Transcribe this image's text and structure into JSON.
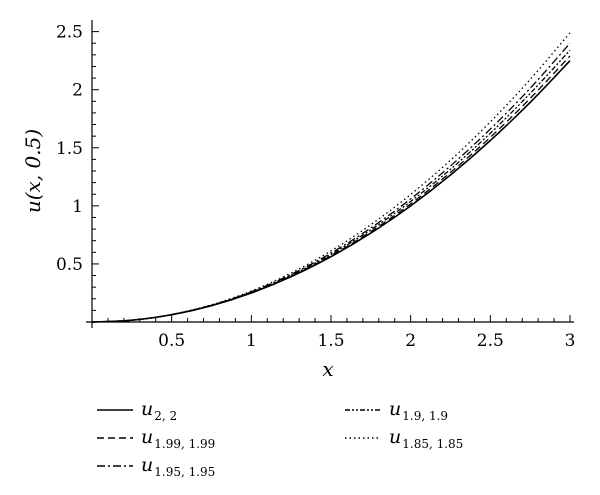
{
  "chart_data": {
    "type": "line",
    "xlabel": "x",
    "ylabel": "u(x, 0.5)",
    "xlim": [
      0,
      3
    ],
    "ylim": [
      0,
      2.6
    ],
    "x_ticks": [
      0.5,
      1,
      1.5,
      2,
      2.5,
      3
    ],
    "x_tick_labels": [
      "0.5",
      "1",
      "1.5",
      "2",
      "2.5",
      "3"
    ],
    "y_ticks": [
      0.5,
      1,
      1.5,
      2,
      2.5
    ],
    "y_tick_labels": [
      "0.5",
      "1",
      "1.5",
      "2",
      "2.5"
    ],
    "grid": false,
    "legend_position": "below",
    "x": [
      0,
      0.25,
      0.5,
      0.75,
      1.0,
      1.25,
      1.5,
      1.75,
      2.0,
      2.25,
      2.5,
      2.75,
      3.0
    ],
    "series": [
      {
        "label_main": "u",
        "label_sub": "2, 2",
        "dash": "solid",
        "values": [
          0,
          0.0156,
          0.0625,
          0.1406,
          0.25,
          0.3906,
          0.5625,
          0.7656,
          1.0,
          1.2656,
          1.5625,
          1.8906,
          2.25
        ]
      },
      {
        "label_main": "u",
        "label_sub": "1.99, 1.99",
        "dash": "dashed",
        "values": [
          0,
          0.0156,
          0.063,
          0.142,
          0.253,
          0.396,
          0.571,
          0.778,
          1.017,
          1.288,
          1.59,
          1.925,
          2.29
        ]
      },
      {
        "label_main": "u",
        "label_sub": "1.95, 1.95",
        "dash": "dashdot",
        "values": [
          0,
          0.0157,
          0.064,
          0.145,
          0.26,
          0.41,
          0.593,
          0.81,
          1.06,
          1.344,
          1.661,
          2.012,
          2.4
        ]
      },
      {
        "label_main": "u",
        "label_sub": "1.9, 1.9",
        "dash": "dashdotdot",
        "values": [
          0,
          0.0157,
          0.0635,
          0.1435,
          0.256,
          0.403,
          0.582,
          0.794,
          1.038,
          1.315,
          1.625,
          1.968,
          2.34
        ]
      },
      {
        "label_main": "u",
        "label_sub": "1.85, 1.85",
        "dash": "dotted",
        "values": [
          0,
          0.0158,
          0.065,
          0.148,
          0.267,
          0.422,
          0.612,
          0.838,
          1.098,
          1.393,
          1.723,
          2.088,
          2.49
        ]
      }
    ]
  }
}
